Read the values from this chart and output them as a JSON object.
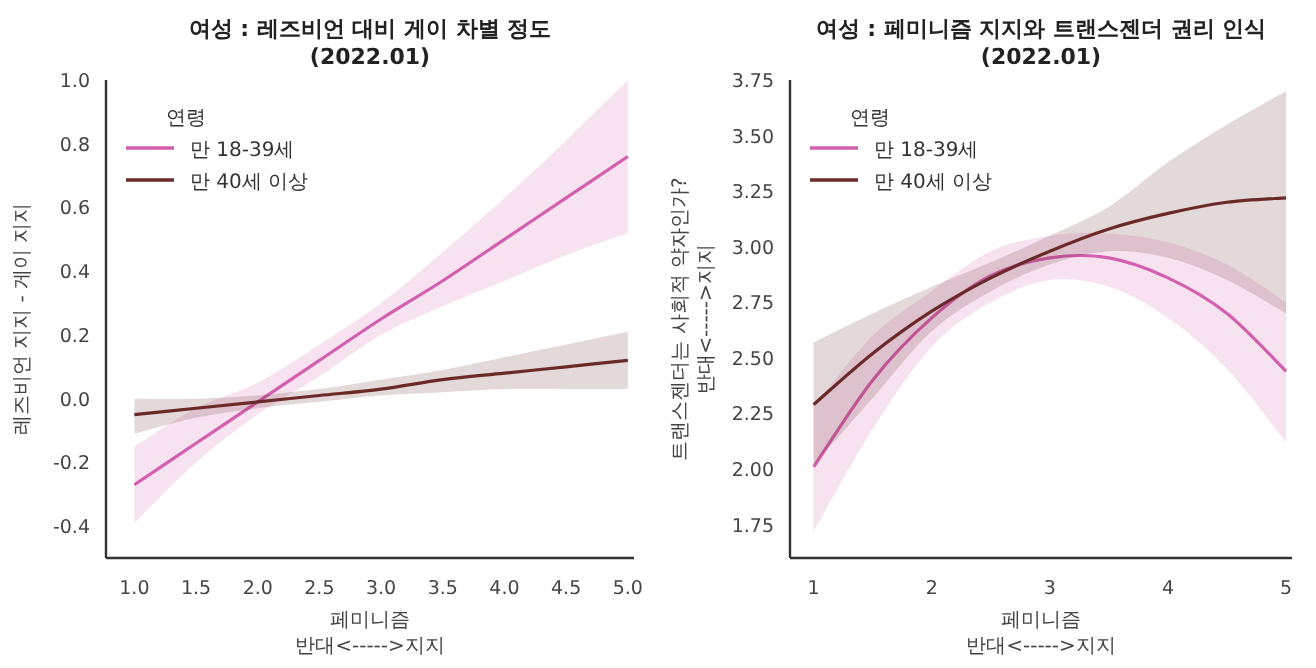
{
  "chart_data": [
    {
      "type": "line",
      "title": "여성 : 레즈비언 대비 게이 차별 정도",
      "subtitle": "(2022.01)",
      "xlabel": "페미니즘\n반대<----->지지",
      "ylabel": "레즈비언 지지 - 게이 지지",
      "legend_title": "연령",
      "legend": "top left",
      "xlim": [
        0.77,
        5.05
      ],
      "ylim": [
        -0.5,
        1.0
      ],
      "xticks": [
        {
          "value": 1,
          "label": "1.0"
        },
        {
          "value": 1.5,
          "label": "1.5"
        },
        {
          "value": 2,
          "label": "2.0"
        },
        {
          "value": 2.5,
          "label": "2.5"
        },
        {
          "value": 3,
          "label": "3.0"
        },
        {
          "value": 3.5,
          "label": "3.5"
        },
        {
          "value": 4,
          "label": "4.0"
        },
        {
          "value": 4.5,
          "label": "4.5"
        },
        {
          "value": 5,
          "label": "5.0"
        }
      ],
      "yticks": [
        {
          "value": -0.4,
          "label": "-0.4"
        },
        {
          "value": -0.2,
          "label": "-0.2"
        },
        {
          "value": 0,
          "label": "0.0"
        },
        {
          "value": 0.2,
          "label": "0.2"
        },
        {
          "value": 0.4,
          "label": "0.4"
        },
        {
          "value": 0.6,
          "label": "0.6"
        },
        {
          "value": 0.8,
          "label": "0.8"
        },
        {
          "value": 1,
          "label": "1.0"
        }
      ],
      "x": [
        1,
        1.5,
        2,
        2.5,
        3,
        3.5,
        4,
        4.5,
        5
      ],
      "series": [
        {
          "name": "만 18-39세",
          "color": "#d35fae",
          "values": [
            -0.27,
            -0.14,
            -0.01,
            0.12,
            0.25,
            0.37,
            0.5,
            0.63,
            0.76
          ],
          "lower": [
            -0.39,
            -0.2,
            -0.05,
            0.07,
            0.2,
            0.29,
            0.37,
            0.45,
            0.52
          ],
          "upper": [
            -0.15,
            -0.03,
            0.05,
            0.17,
            0.3,
            0.46,
            0.63,
            0.81,
            1.0
          ]
        },
        {
          "name": "만 40세 이상",
          "color": "#6b2a2a",
          "values": [
            -0.05,
            -0.03,
            -0.01,
            0.01,
            0.03,
            0.06,
            0.08,
            0.1,
            0.12
          ],
          "lower": [
            -0.11,
            -0.06,
            -0.03,
            -0.01,
            0.01,
            0.02,
            0.03,
            0.03,
            0.03
          ],
          "upper": [
            0.0,
            0.0,
            0.01,
            0.03,
            0.06,
            0.09,
            0.13,
            0.17,
            0.21
          ]
        }
      ]
    },
    {
      "type": "line",
      "title": "여성 : 페미니즘 지지와 트랜스젠더 권리 인식",
      "subtitle": "(2022.01)",
      "xlabel": "페미니즘\n반대<----->지지",
      "ylabel": "트랜스젠더는 사회적 약자인가?\n반대<----->지지",
      "legend_title": "연령",
      "legend": "top left",
      "xlim": [
        0.8,
        5.05
      ],
      "ylim": [
        1.6,
        3.75
      ],
      "xticks": [
        1,
        2,
        3,
        4,
        5
      ],
      "yticks": [
        {
          "value": 1.75,
          "label": "1.75"
        },
        {
          "value": 2,
          "label": "2.00"
        },
        {
          "value": 2.25,
          "label": "2.25"
        },
        {
          "value": 2.5,
          "label": "2.50"
        },
        {
          "value": 2.75,
          "label": "2.75"
        },
        {
          "value": 3,
          "label": "3.00"
        },
        {
          "value": 3.25,
          "label": "3.25"
        },
        {
          "value": 3.5,
          "label": "3.50"
        },
        {
          "value": 3.75,
          "label": "3.75"
        }
      ],
      "x": [
        1,
        1.5,
        2,
        2.5,
        3,
        3.5,
        4,
        4.5,
        5
      ],
      "series": [
        {
          "name": "만 18-39세",
          "color": "#d35fae",
          "values": [
            2.01,
            2.4,
            2.68,
            2.87,
            2.95,
            2.95,
            2.86,
            2.7,
            2.44
          ],
          "lower": [
            1.72,
            2.18,
            2.55,
            2.75,
            2.85,
            2.82,
            2.68,
            2.45,
            2.12
          ],
          "upper": [
            2.28,
            2.6,
            2.8,
            2.98,
            3.05,
            3.06,
            3.02,
            2.92,
            2.75
          ]
        },
        {
          "name": "만 40세 이상",
          "color": "#6b2a2a",
          "values": [
            2.29,
            2.52,
            2.71,
            2.86,
            2.98,
            3.08,
            3.15,
            3.2,
            3.22
          ],
          "lower": [
            2.02,
            2.32,
            2.62,
            2.8,
            2.92,
            2.98,
            2.95,
            2.85,
            2.7
          ],
          "upper": [
            2.57,
            2.7,
            2.82,
            2.93,
            3.05,
            3.18,
            3.38,
            3.55,
            3.7
          ]
        }
      ]
    }
  ]
}
